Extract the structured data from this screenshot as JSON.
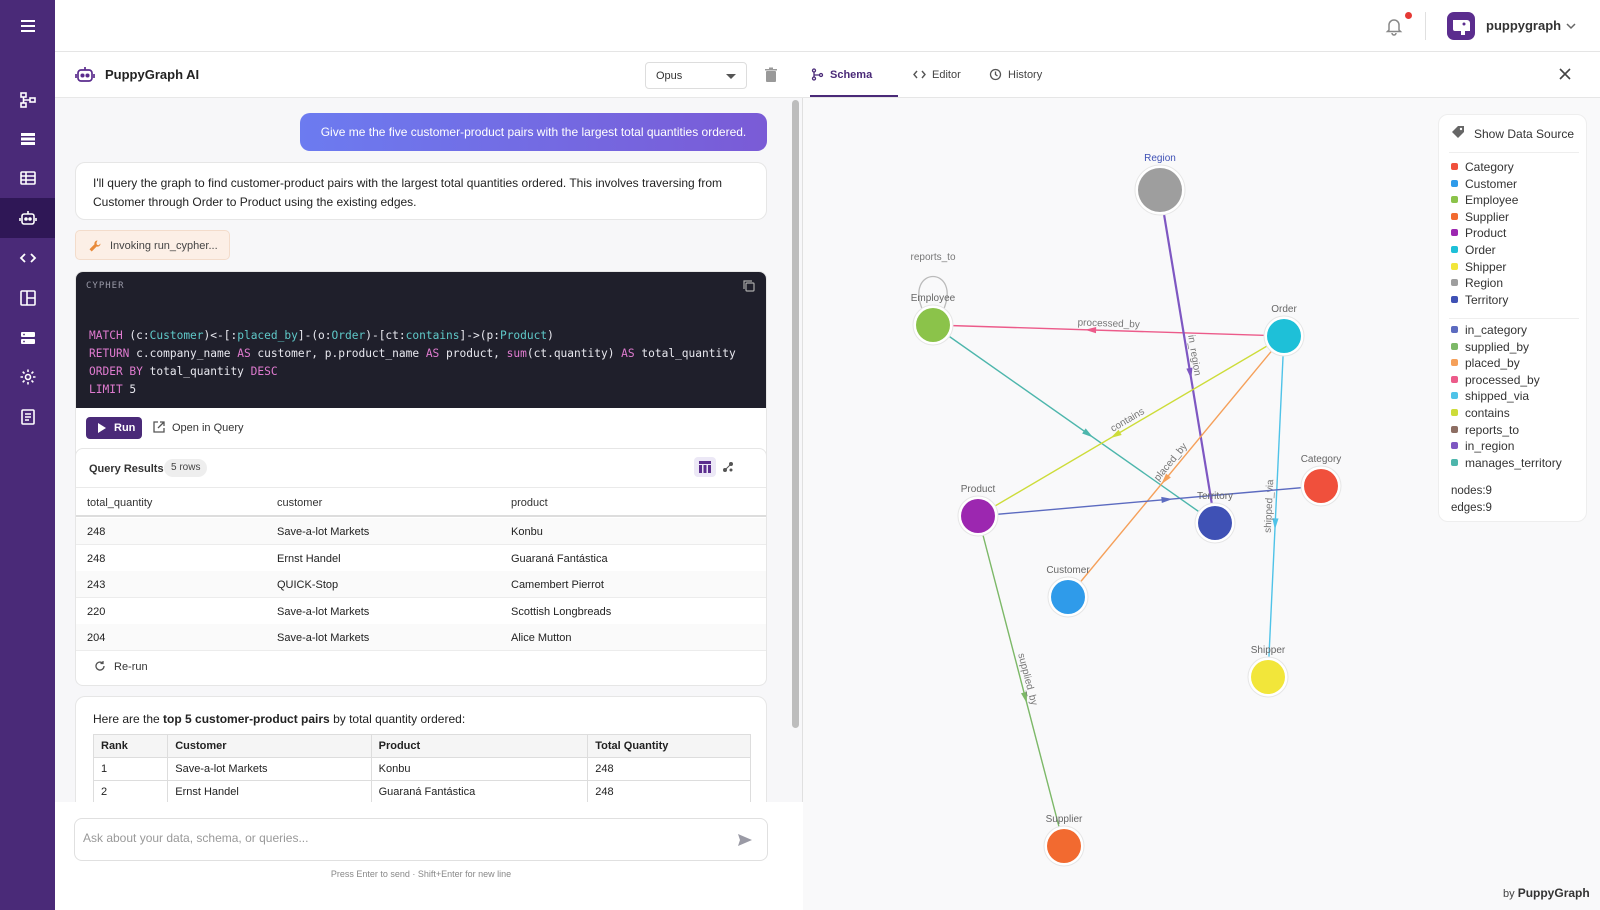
{
  "user": {
    "name": "puppygraph"
  },
  "chat": {
    "title": "PuppyGraph AI",
    "model": "Opus",
    "user_message": "Give me the five customer-product pairs with the largest total quantities ordered.",
    "bot_message": "I'll query the graph to find customer-product pairs with the largest total quantities ordered. This involves traversing from Customer through Order to Product using the existing edges.",
    "invoke_label": "Invoking run_cypher...",
    "code_lang": "CYPHER",
    "run_label": "Run",
    "open_label": "Open in Query",
    "results_title": "Query Results",
    "results_badge": "5 rows",
    "results_columns": [
      "total_quantity",
      "customer",
      "product"
    ],
    "results_rows": [
      [
        "248",
        "Save-a-lot Markets",
        "Konbu"
      ],
      [
        "248",
        "Ernst Handel",
        "Guaraná Fantástica"
      ],
      [
        "243",
        "QUICK-Stop",
        "Camembert Pierrot"
      ],
      [
        "220",
        "Save-a-lot Markets",
        "Scottish Longbreads"
      ],
      [
        "204",
        "Save-a-lot Markets",
        "Alice Mutton"
      ]
    ],
    "rerun_label": "Re-run",
    "summary_pre": "Here are the ",
    "summary_bold": "top 5 customer-product pairs",
    "summary_post": " by total quantity ordered:",
    "summary_columns": [
      "Rank",
      "Customer",
      "Product",
      "Total Quantity"
    ],
    "summary_rows": [
      [
        "1",
        "Save-a-lot Markets",
        "Konbu",
        "248"
      ],
      [
        "2",
        "Ernst Handel",
        "Guaraná Fantástica",
        "248"
      ]
    ],
    "input_placeholder": "Ask about your data, schema, or queries...",
    "hint": "Press Enter to send · Shift+Enter for new line"
  },
  "schema": {
    "tabs": [
      "Schema",
      "Editor",
      "History"
    ],
    "show_data_source": "Show Data Source",
    "node_types": [
      {
        "name": "Category",
        "color": "#f0503c"
      },
      {
        "name": "Customer",
        "color": "#2f9bea"
      },
      {
        "name": "Employee",
        "color": "#8bc34a"
      },
      {
        "name": "Supplier",
        "color": "#f26a30"
      },
      {
        "name": "Product",
        "color": "#9c27b0"
      },
      {
        "name": "Order",
        "color": "#1ec0d8"
      },
      {
        "name": "Shipper",
        "color": "#f2e63a"
      },
      {
        "name": "Region",
        "color": "#9e9e9e"
      },
      {
        "name": "Territory",
        "color": "#3f51b5"
      }
    ],
    "edge_types": [
      {
        "name": "in_category",
        "color": "#5c6bc0"
      },
      {
        "name": "supplied_by",
        "color": "#7cb867"
      },
      {
        "name": "placed_by",
        "color": "#f5a05a"
      },
      {
        "name": "processed_by",
        "color": "#ec5b8a"
      },
      {
        "name": "shipped_via",
        "color": "#4fc3e8"
      },
      {
        "name": "contains",
        "color": "#cddc39"
      },
      {
        "name": "reports_to",
        "color": "#8d6e63"
      },
      {
        "name": "in_region",
        "color": "#7e57c2"
      },
      {
        "name": "manages_territory",
        "color": "#4db6ac"
      }
    ],
    "nodes_stat": "nodes:9",
    "edges_stat": "edges:9",
    "graph_nodes": [
      "Region",
      "Employee",
      "Order",
      "Category",
      "Product",
      "Territory",
      "Customer",
      "Shipper",
      "Supplier"
    ],
    "graph_edges": [
      "reports_to",
      "processed_by",
      "in_region",
      "contains",
      "placed_by",
      "shipped_via",
      "supplied_by"
    ],
    "footer_by": "by",
    "footer_brand": "PuppyGraph"
  }
}
